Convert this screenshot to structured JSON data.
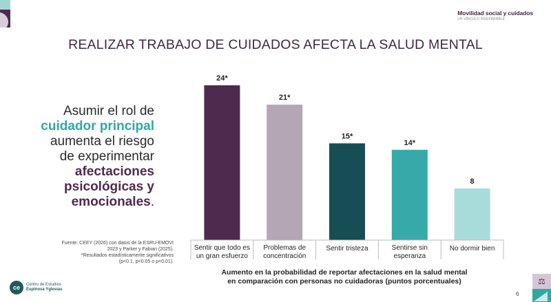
{
  "header": {
    "title": "Movilidad social y cuidados",
    "subtitle": "UN VÍNCULO INSEPARABLE"
  },
  "slide": {
    "title": "REALIZAR TRABAJO DE CUIDADOS AFECTA LA SALUD MENTAL",
    "page_number": "6"
  },
  "lead_text": {
    "line1": "Asumir el rol de",
    "line2": "cuidador principal",
    "line3": "aumenta el riesgo",
    "line4": "de experimentar",
    "line5": "afectaciones",
    "line6": "psicológicas y",
    "line7": "emocionales",
    "period": "."
  },
  "source": {
    "line1": "Fuente: CEEY (2026) con datos de la ESRU-EMOVI",
    "line2": "2023 y Parker y Fabian (2025).",
    "line3": "*Resultados estadísticamente significativos",
    "line4": "(p<0.1, p<0.05 o p<0.01)."
  },
  "logo": {
    "line1": "Centro de Estudios",
    "line2": "Espinosa Yglesias",
    "icon": "ceey-logo-icon"
  },
  "icons": {
    "bottom_right": "scale-balance-icon"
  },
  "chart_data": {
    "type": "bar",
    "title": "",
    "xlabel_line1": "Aumento en la probabilidad de reportar afectaciones en la salud mental",
    "xlabel_line2": "en comparación con personas no cuidadoras (puntos porcentuales)",
    "ylabel": "",
    "ylim": [
      0,
      24
    ],
    "grid": false,
    "legend": "none",
    "categories": [
      [
        "Sentir que todo es",
        "un gran esfuerzo"
      ],
      [
        "Problemas de",
        "concentración"
      ],
      [
        "Sentir tristeza"
      ],
      [
        "Sentirse sin",
        "esperanza"
      ],
      [
        "No dormir bien"
      ]
    ],
    "values": [
      24,
      21,
      15,
      14,
      8
    ],
    "labels": [
      "24*",
      "21*",
      "15*",
      "14*",
      "8"
    ],
    "significant": [
      true,
      true,
      true,
      true,
      false
    ],
    "colors": [
      "#4e2a4f",
      "#b5a6b6",
      "#174d54",
      "#35aaa8",
      "#a8dcdb"
    ]
  }
}
